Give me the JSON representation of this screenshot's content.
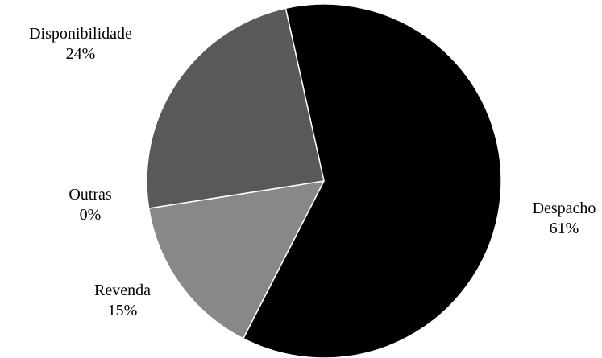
{
  "chart_data": {
    "type": "pie",
    "title": "",
    "slices": [
      {
        "label": "Despacho",
        "value": 61,
        "display": "61%",
        "color": "#000000"
      },
      {
        "label": "Revenda",
        "value": 15,
        "display": "15%",
        "color": "#888888"
      },
      {
        "label": "Outras",
        "value": 0,
        "display": "0%",
        "color": "#a6a6a6"
      },
      {
        "label": "Disponibilidade",
        "value": 24,
        "display": "24%",
        "color": "#595959"
      }
    ],
    "legend": "none",
    "data_labels": "category name and percentage"
  }
}
